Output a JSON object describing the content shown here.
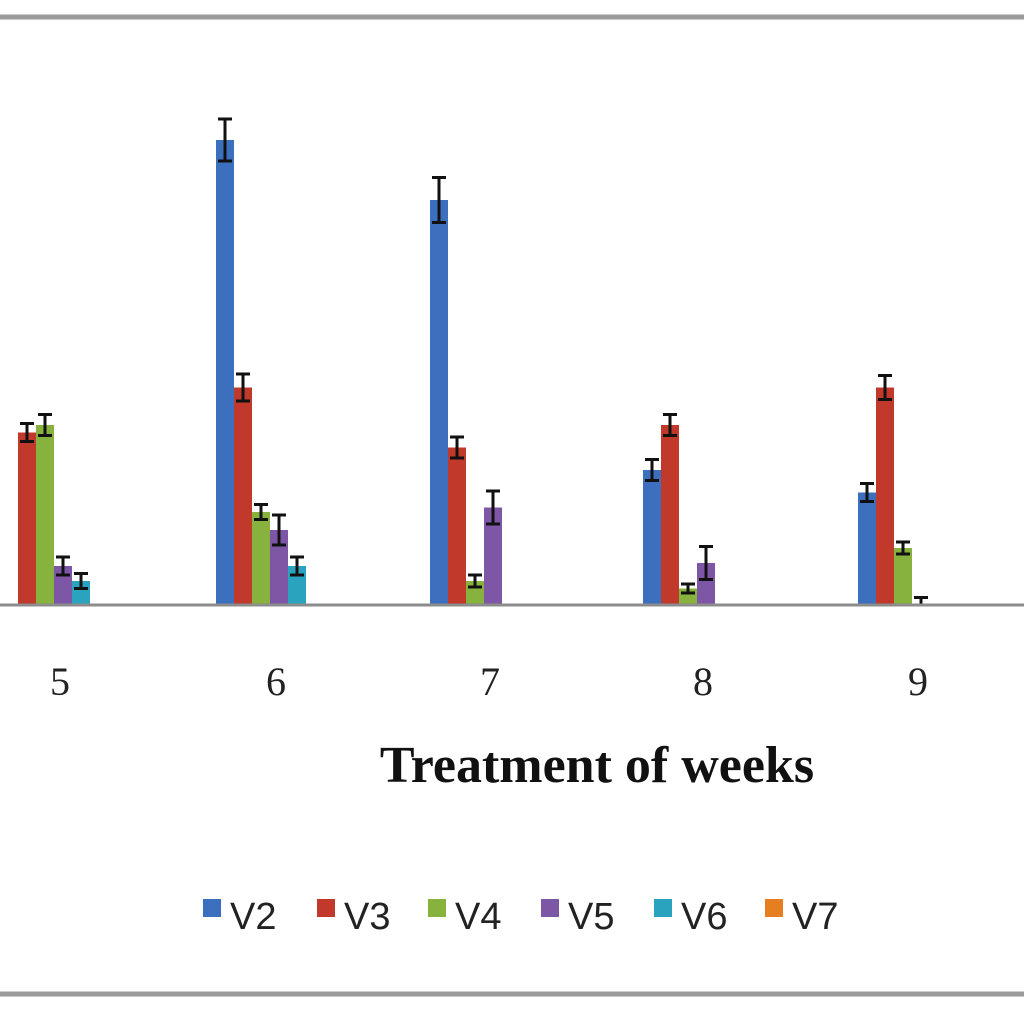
{
  "chart_data": {
    "type": "bar",
    "title": "",
    "xlabel": "Treatment of weeks",
    "ylabel": "",
    "categories": [
      "5",
      "6",
      "7",
      "8",
      "9"
    ],
    "ylim": [
      0,
      33
    ],
    "grid": false,
    "legend_position": "bottom",
    "series": [
      {
        "name": "V2",
        "color": "#3d6fbf",
        "values": [
          null,
          31,
          27,
          9,
          7.5
        ],
        "errors": [
          null,
          1.4,
          1.5,
          0.7,
          0.6
        ]
      },
      {
        "name": "V3",
        "color": "#c0392b",
        "values": [
          11.5,
          14.5,
          10.5,
          12,
          14.5
        ],
        "errors": [
          0.6,
          0.9,
          0.7,
          0.7,
          0.8
        ]
      },
      {
        "name": "V4",
        "color": "#88b23e",
        "values": [
          12,
          6.2,
          1.6,
          1.1,
          3.8
        ],
        "errors": [
          0.7,
          0.5,
          0.4,
          0.3,
          0.4
        ]
      },
      {
        "name": "V5",
        "color": "#7e56a6",
        "values": [
          2.6,
          5,
          6.5,
          2.8,
          0
        ],
        "errors": [
          0.6,
          1,
          1.1,
          1.1,
          0.5
        ]
      },
      {
        "name": "V6",
        "color": "#2aa3be",
        "values": [
          1.6,
          2.6,
          0,
          0,
          0
        ],
        "errors": [
          0.5,
          0.6,
          0,
          0,
          0
        ]
      },
      {
        "name": "V7",
        "color": "#e67e22",
        "values": [
          0,
          0,
          0,
          0,
          0
        ],
        "errors": [
          0,
          0,
          0,
          0,
          0
        ]
      }
    ]
  }
}
